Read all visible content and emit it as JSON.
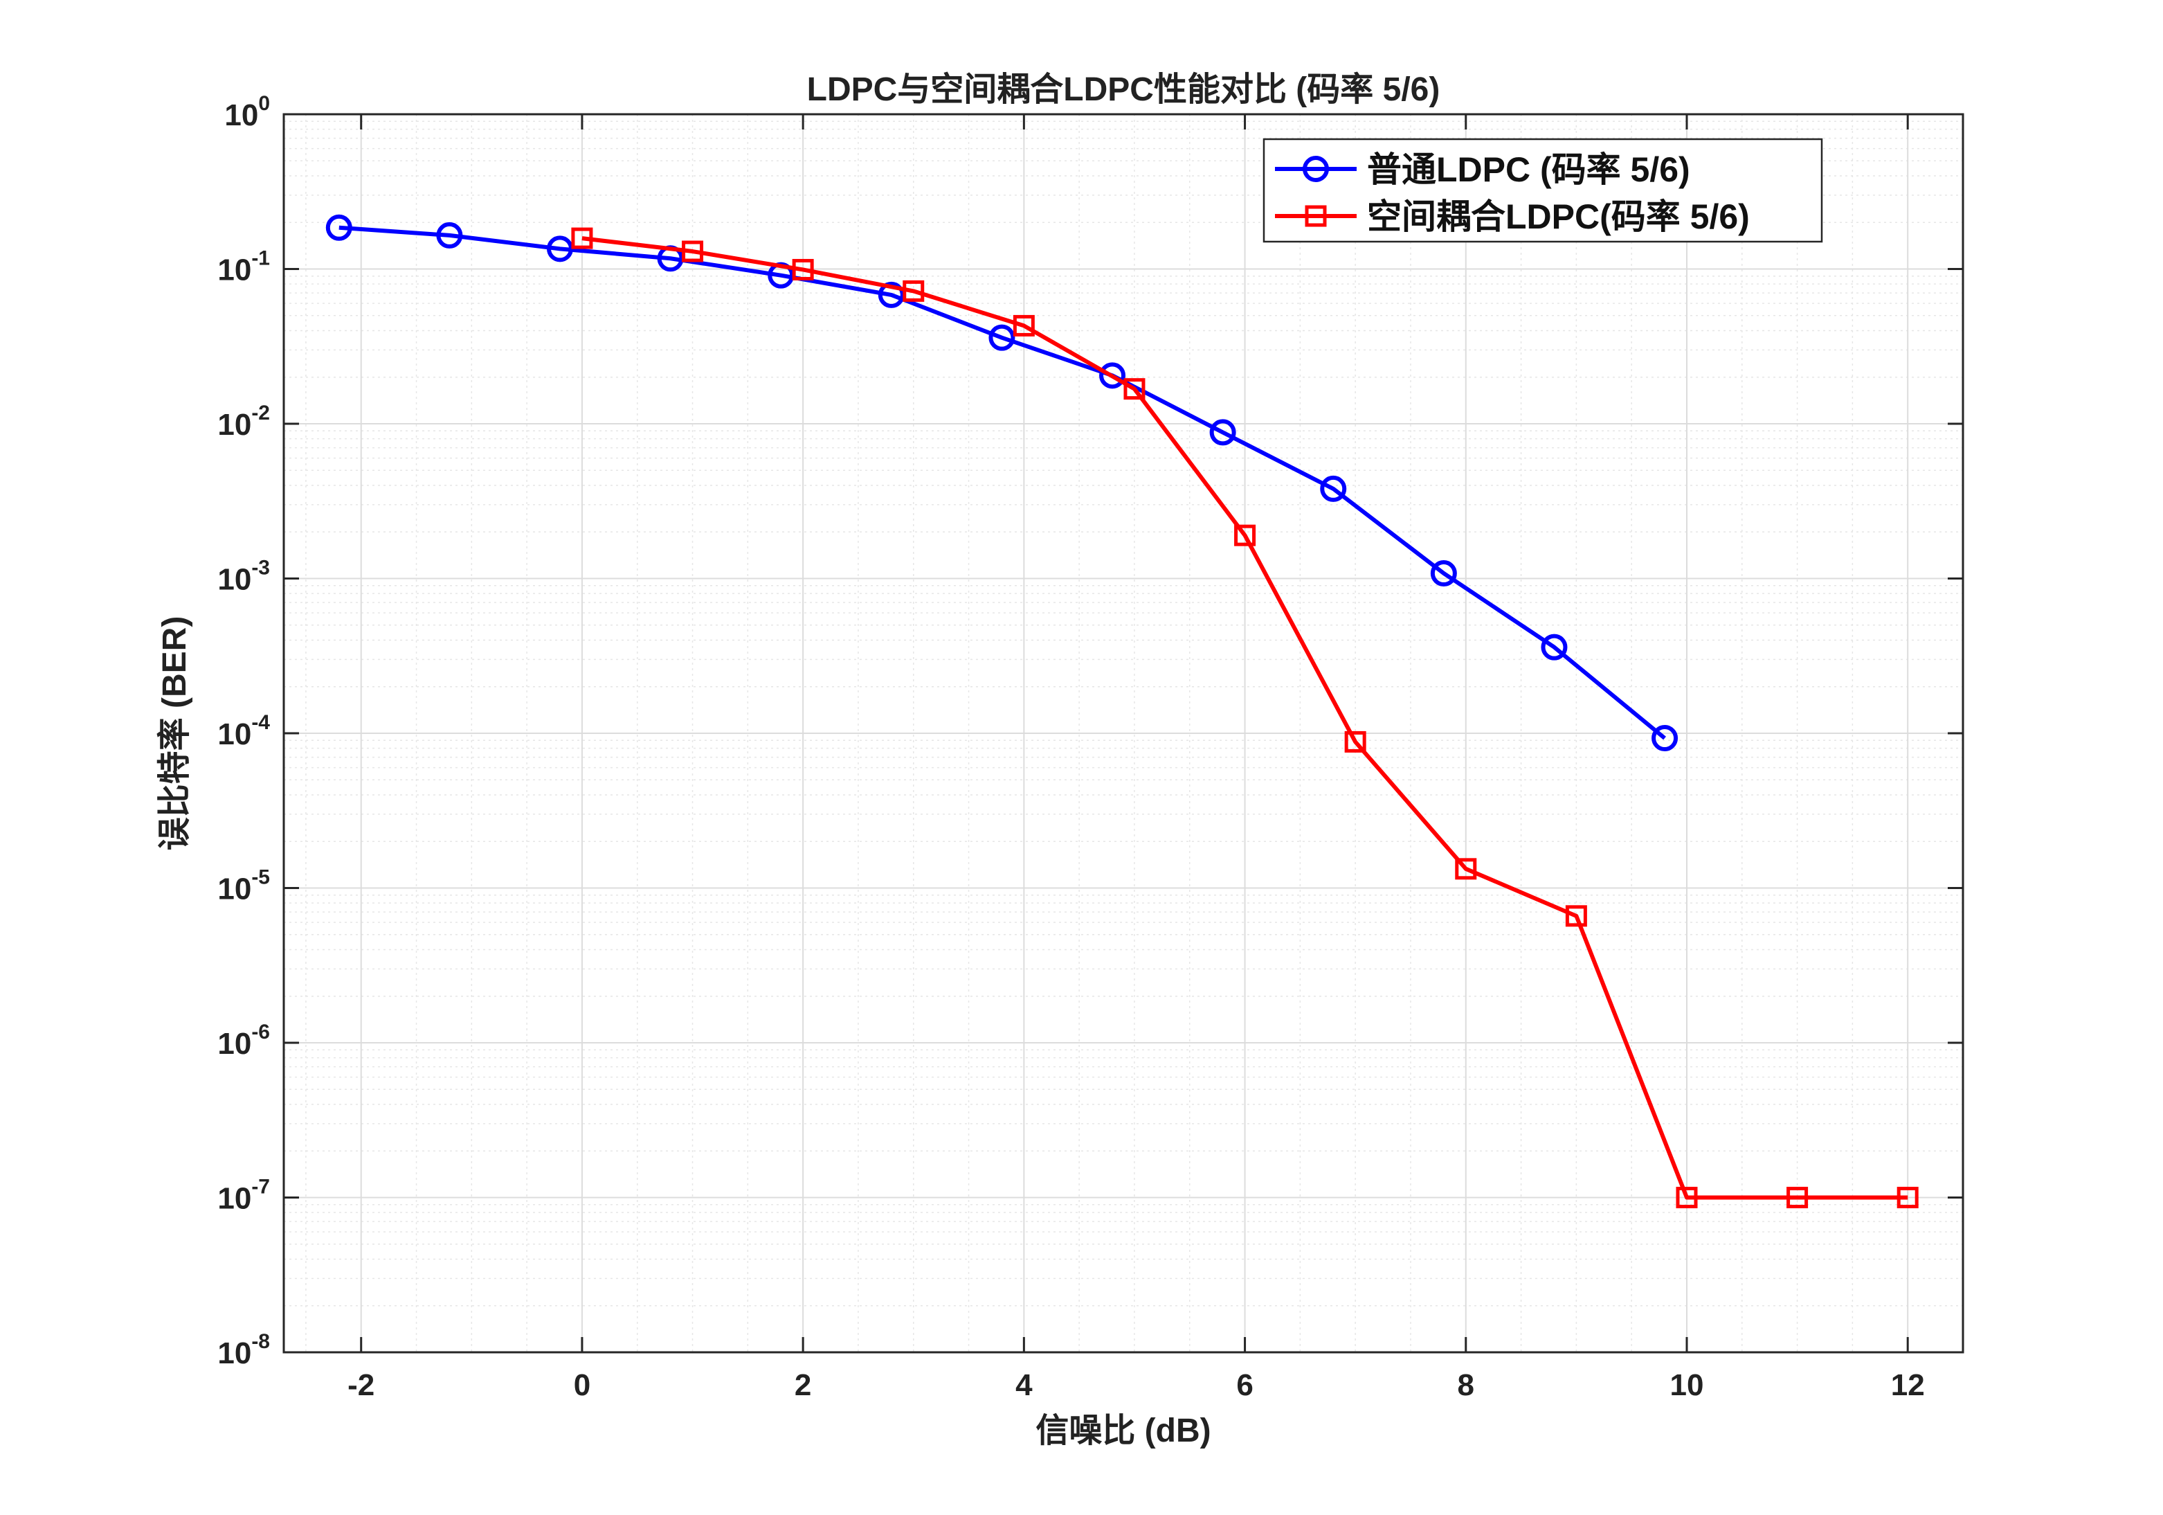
{
  "chart_data": {
    "type": "line",
    "title": "LDPC与空间耦合LDPC性能对比 (码率 5/6)",
    "xlabel": "信噪比 (dB)",
    "ylabel": "误比特率 (BER)",
    "xlim": [
      -2.7,
      12.5
    ],
    "ylim": [
      1e-08,
      1
    ],
    "yscale": "log",
    "grid": true,
    "minor_grid": true,
    "legend_position": "top-right",
    "x_ticks": [
      -2,
      0,
      2,
      4,
      6,
      8,
      10,
      12
    ],
    "x_tick_labels": [
      "-2",
      "0",
      "2",
      "4",
      "6",
      "8",
      "10",
      "12"
    ],
    "y_tick_exponents": [
      0,
      -1,
      -2,
      -3,
      -4,
      -5,
      -6,
      -7,
      -8
    ],
    "y_tick_labels": [
      {
        "base": "10",
        "exp": "0"
      },
      {
        "base": "10",
        "exp": "-1"
      },
      {
        "base": "10",
        "exp": "-2"
      },
      {
        "base": "10",
        "exp": "-3"
      },
      {
        "base": "10",
        "exp": "-4"
      },
      {
        "base": "10",
        "exp": "-5"
      },
      {
        "base": "10",
        "exp": "-6"
      },
      {
        "base": "10",
        "exp": "-7"
      },
      {
        "base": "10",
        "exp": "-8"
      }
    ],
    "series": [
      {
        "name": "普通LDPC (码率 5/6)",
        "color": "#0000ff",
        "marker": "circle",
        "x": [
          -2.2,
          -1.2,
          -0.2,
          0.8,
          1.8,
          2.8,
          3.8,
          4.8,
          5.8,
          6.8,
          7.8,
          8.8,
          9.8
        ],
        "y": [
          0.185,
          0.165,
          0.135,
          0.117,
          0.091,
          0.068,
          0.036,
          0.0205,
          0.0088,
          0.0038,
          0.00108,
          0.00036,
          9.3e-05
        ]
      },
      {
        "name": "空间耦合LDPC(码率 5/6)",
        "color": "#ff0000",
        "marker": "square",
        "x": [
          0,
          1,
          2,
          3,
          4,
          5,
          6,
          7,
          8,
          9,
          10,
          11,
          12
        ],
        "y": [
          0.158,
          0.13,
          0.099,
          0.072,
          0.043,
          0.0168,
          0.0019,
          8.8e-05,
          1.33e-05,
          6.6e-06,
          1e-07,
          1e-07,
          1e-07
        ]
      }
    ]
  }
}
